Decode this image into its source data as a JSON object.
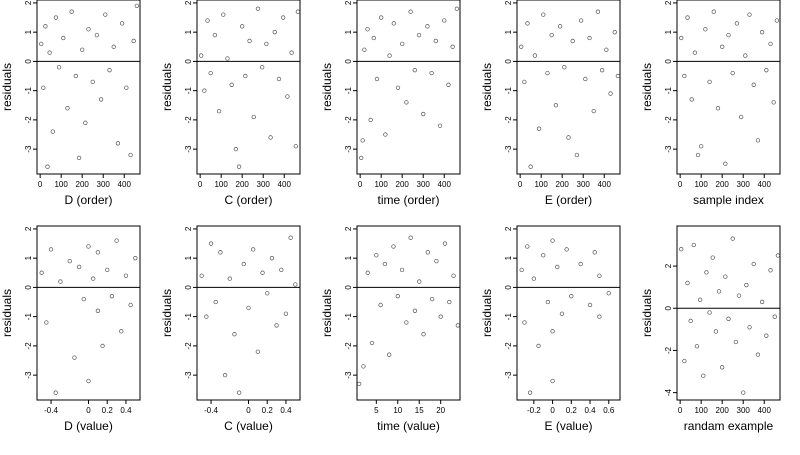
{
  "panels": [
    {
      "kind": "scatter",
      "xlabel": "D (order)",
      "ylabel": "residuals",
      "xlim": [
        -15,
        475
      ],
      "ylim": [
        -3.85,
        2.1
      ],
      "xticks": [
        0,
        100,
        200,
        300,
        400
      ],
      "yticks": [
        -3,
        -2,
        -1,
        0,
        1,
        2
      ],
      "ref_y": 0
    },
    {
      "kind": "scatter",
      "xlabel": "C (order)",
      "ylabel": "residuals",
      "xlim": [
        -15,
        475
      ],
      "ylim": [
        -3.85,
        2.1
      ],
      "xticks": [
        0,
        100,
        200,
        300,
        400
      ],
      "yticks": [
        -3,
        -2,
        -1,
        0,
        1,
        2
      ],
      "ref_y": 0
    },
    {
      "kind": "scatter",
      "xlabel": "time (order)",
      "ylabel": "residuals",
      "xlim": [
        -15,
        475
      ],
      "ylim": [
        -3.85,
        2.1
      ],
      "xticks": [
        0,
        100,
        200,
        300,
        400
      ],
      "yticks": [
        -3,
        -2,
        -1,
        0,
        1,
        2
      ],
      "ref_y": 0
    },
    {
      "kind": "scatter",
      "xlabel": "E (order)",
      "ylabel": "residuals",
      "xlim": [
        -15,
        475
      ],
      "ylim": [
        -3.85,
        2.1
      ],
      "xticks": [
        0,
        100,
        200,
        300,
        400
      ],
      "yticks": [
        -3,
        -2,
        -1,
        0,
        1,
        2
      ],
      "ref_y": 0
    },
    {
      "kind": "scatter",
      "xlabel": "sample index",
      "ylabel": "residuals",
      "xlim": [
        -15,
        475
      ],
      "ylim": [
        -3.85,
        2.1
      ],
      "xticks": [
        0,
        100,
        200,
        300,
        400
      ],
      "yticks": [
        -3,
        -2,
        -1,
        0,
        1,
        2
      ],
      "ref_y": 0
    },
    {
      "kind": "scatter",
      "xlabel": "D (value)",
      "ylabel": "residuals",
      "xlim": [
        -0.55,
        0.55
      ],
      "ylim": [
        -3.85,
        2.1
      ],
      "xticks": [
        -0.4,
        0.0,
        0.2,
        0.4
      ],
      "yticks": [
        -3,
        -2,
        -1,
        0,
        1,
        2
      ],
      "ref_y": 0
    },
    {
      "kind": "scatter",
      "xlabel": "C (value)",
      "ylabel": "residuals",
      "xlim": [
        -0.55,
        0.55
      ],
      "ylim": [
        -3.85,
        2.1
      ],
      "xticks": [
        -0.4,
        0.0,
        0.2,
        0.4
      ],
      "yticks": [
        -3,
        -2,
        -1,
        0,
        1,
        2
      ],
      "ref_y": 0
    },
    {
      "kind": "scatter",
      "xlabel": "time (value)",
      "ylabel": "residuals",
      "xlim": [
        0.5,
        24.5
      ],
      "ylim": [
        -3.85,
        2.1
      ],
      "xticks": [
        5,
        10,
        15,
        20
      ],
      "yticks": [
        -3,
        -2,
        -1,
        0,
        1,
        2
      ],
      "ref_y": 0
    },
    {
      "kind": "scatter",
      "xlabel": "E (value)",
      "ylabel": "residuals",
      "xlim": [
        -0.38,
        0.72
      ],
      "ylim": [
        -3.85,
        2.1
      ],
      "xticks": [
        -0.2,
        0.0,
        0.2,
        0.4,
        0.6
      ],
      "yticks": [
        -3,
        -2,
        -1,
        0,
        1,
        2
      ],
      "ref_y": 0
    },
    {
      "kind": "scatter",
      "xlabel": "randam example",
      "ylabel": "residuals",
      "xlim": [
        -15,
        475
      ],
      "ylim": [
        -4.35,
        3.9
      ],
      "xticks": [
        0,
        100,
        200,
        300,
        400
      ],
      "yticks": [
        -4,
        -2,
        0,
        2
      ],
      "ref_y": 0
    }
  ],
  "chart_data": [
    {
      "type": "scatter",
      "xlabel": "D (order)",
      "ylabel": "residuals",
      "xlim": [
        -15,
        475
      ],
      "ylim": [
        -3.85,
        2.1
      ],
      "grid": false,
      "points": [
        [
          5,
          0.6
        ],
        [
          15,
          -0.9
        ],
        [
          25,
          1.2
        ],
        [
          35,
          -3.6
        ],
        [
          45,
          0.3
        ],
        [
          60,
          -2.4
        ],
        [
          75,
          1.5
        ],
        [
          90,
          -0.2
        ],
        [
          110,
          0.8
        ],
        [
          130,
          -1.6
        ],
        [
          150,
          1.7
        ],
        [
          170,
          -0.5
        ],
        [
          185,
          -3.3
        ],
        [
          200,
          0.4
        ],
        [
          215,
          -2.1
        ],
        [
          230,
          1.1
        ],
        [
          250,
          -0.7
        ],
        [
          270,
          0.9
        ],
        [
          290,
          -1.3
        ],
        [
          310,
          1.6
        ],
        [
          330,
          -0.3
        ],
        [
          350,
          0.5
        ],
        [
          370,
          -2.8
        ],
        [
          390,
          1.3
        ],
        [
          410,
          -0.9
        ],
        [
          430,
          -3.2
        ],
        [
          445,
          0.7
        ],
        [
          460,
          1.9
        ]
      ]
    },
    {
      "type": "scatter",
      "xlabel": "C (order)",
      "ylabel": "residuals",
      "xlim": [
        -15,
        475
      ],
      "ylim": [
        -3.85,
        2.1
      ],
      "grid": false,
      "points": [
        [
          5,
          0.2
        ],
        [
          20,
          -1.0
        ],
        [
          35,
          1.4
        ],
        [
          50,
          -0.4
        ],
        [
          70,
          0.9
        ],
        [
          90,
          -1.7
        ],
        [
          110,
          1.6
        ],
        [
          130,
          0.1
        ],
        [
          150,
          -0.8
        ],
        [
          170,
          -3.0
        ],
        [
          185,
          -3.6
        ],
        [
          200,
          1.2
        ],
        [
          215,
          -0.5
        ],
        [
          235,
          0.7
        ],
        [
          255,
          -1.9
        ],
        [
          275,
          1.8
        ],
        [
          295,
          -0.2
        ],
        [
          315,
          0.6
        ],
        [
          335,
          -2.6
        ],
        [
          355,
          1.0
        ],
        [
          375,
          -0.6
        ],
        [
          395,
          1.5
        ],
        [
          415,
          -1.2
        ],
        [
          435,
          0.3
        ],
        [
          455,
          -2.9
        ],
        [
          465,
          1.7
        ]
      ]
    },
    {
      "type": "scatter",
      "xlabel": "time (order)",
      "ylabel": "residuals",
      "xlim": [
        -15,
        475
      ],
      "ylim": [
        -3.85,
        2.1
      ],
      "grid": false,
      "points": [
        [
          5,
          -3.3
        ],
        [
          12,
          -2.7
        ],
        [
          20,
          0.4
        ],
        [
          35,
          1.1
        ],
        [
          50,
          -2.0
        ],
        [
          65,
          0.8
        ],
        [
          80,
          -0.6
        ],
        [
          100,
          1.5
        ],
        [
          120,
          -2.5
        ],
        [
          140,
          0.2
        ],
        [
          160,
          1.3
        ],
        [
          180,
          -0.9
        ],
        [
          200,
          0.6
        ],
        [
          220,
          -1.4
        ],
        [
          240,
          1.7
        ],
        [
          260,
          -0.3
        ],
        [
          280,
          0.9
        ],
        [
          300,
          -1.8
        ],
        [
          320,
          1.2
        ],
        [
          340,
          -0.4
        ],
        [
          360,
          0.7
        ],
        [
          380,
          -2.2
        ],
        [
          400,
          1.4
        ],
        [
          420,
          -0.8
        ],
        [
          440,
          0.5
        ],
        [
          460,
          1.8
        ]
      ]
    },
    {
      "type": "scatter",
      "xlabel": "E (order)",
      "ylabel": "residuals",
      "xlim": [
        -15,
        475
      ],
      "ylim": [
        -3.85,
        2.1
      ],
      "grid": false,
      "points": [
        [
          5,
          0.5
        ],
        [
          20,
          -0.7
        ],
        [
          35,
          1.3
        ],
        [
          50,
          -3.6
        ],
        [
          70,
          0.2
        ],
        [
          90,
          -2.3
        ],
        [
          110,
          1.6
        ],
        [
          130,
          -0.4
        ],
        [
          150,
          0.9
        ],
        [
          170,
          -1.5
        ],
        [
          190,
          1.2
        ],
        [
          210,
          -0.2
        ],
        [
          230,
          -2.6
        ],
        [
          250,
          0.7
        ],
        [
          270,
          -3.2
        ],
        [
          290,
          1.4
        ],
        [
          310,
          -0.6
        ],
        [
          330,
          0.8
        ],
        [
          350,
          -1.7
        ],
        [
          370,
          1.7
        ],
        [
          390,
          -0.3
        ],
        [
          410,
          0.4
        ],
        [
          430,
          -1.1
        ],
        [
          450,
          1.0
        ],
        [
          465,
          -0.5
        ]
      ]
    },
    {
      "type": "scatter",
      "xlabel": "sample index",
      "ylabel": "residuals",
      "xlim": [
        -15,
        475
      ],
      "ylim": [
        -3.85,
        2.1
      ],
      "grid": false,
      "points": [
        [
          5,
          0.8
        ],
        [
          20,
          -0.5
        ],
        [
          35,
          1.5
        ],
        [
          55,
          -1.3
        ],
        [
          70,
          0.3
        ],
        [
          85,
          -3.2
        ],
        [
          100,
          -2.9
        ],
        [
          120,
          1.1
        ],
        [
          140,
          -0.7
        ],
        [
          160,
          1.7
        ],
        [
          180,
          -1.6
        ],
        [
          200,
          0.5
        ],
        [
          215,
          -3.5
        ],
        [
          230,
          0.9
        ],
        [
          250,
          -0.4
        ],
        [
          270,
          1.3
        ],
        [
          290,
          -1.9
        ],
        [
          310,
          0.2
        ],
        [
          330,
          1.6
        ],
        [
          350,
          -0.8
        ],
        [
          370,
          -2.7
        ],
        [
          390,
          1.0
        ],
        [
          410,
          -0.3
        ],
        [
          430,
          0.6
        ],
        [
          445,
          -1.4
        ],
        [
          460,
          1.4
        ]
      ]
    },
    {
      "type": "scatter",
      "xlabel": "D (value)",
      "ylabel": "residuals",
      "xlim": [
        -0.55,
        0.55
      ],
      "ylim": [
        -3.85,
        2.1
      ],
      "grid": false,
      "points": [
        [
          -0.5,
          0.5
        ],
        [
          -0.45,
          -1.2
        ],
        [
          -0.4,
          1.3
        ],
        [
          -0.35,
          -3.6
        ],
        [
          -0.3,
          0.2
        ],
        [
          -0.2,
          0.9
        ],
        [
          -0.15,
          -2.4
        ],
        [
          -0.1,
          0.7
        ],
        [
          -0.05,
          -0.4
        ],
        [
          0.0,
          1.4
        ],
        [
          0.0,
          -3.2
        ],
        [
          0.05,
          0.3
        ],
        [
          0.1,
          -0.8
        ],
        [
          0.1,
          1.2
        ],
        [
          0.15,
          -2.0
        ],
        [
          0.2,
          0.6
        ],
        [
          0.25,
          -0.3
        ],
        [
          0.3,
          1.6
        ],
        [
          0.35,
          -1.5
        ],
        [
          0.4,
          0.4
        ],
        [
          0.45,
          -0.6
        ],
        [
          0.5,
          1.0
        ]
      ]
    },
    {
      "type": "scatter",
      "xlabel": "C (value)",
      "ylabel": "residuals",
      "xlim": [
        -0.55,
        0.55
      ],
      "ylim": [
        -3.85,
        2.1
      ],
      "grid": false,
      "points": [
        [
          -0.5,
          0.4
        ],
        [
          -0.45,
          -1.0
        ],
        [
          -0.4,
          1.5
        ],
        [
          -0.35,
          -0.5
        ],
        [
          -0.3,
          1.2
        ],
        [
          -0.25,
          -3.0
        ],
        [
          -0.2,
          0.3
        ],
        [
          -0.15,
          -1.6
        ],
        [
          -0.1,
          -3.6
        ],
        [
          -0.05,
          0.8
        ],
        [
          0.0,
          -0.7
        ],
        [
          0.05,
          1.3
        ],
        [
          0.1,
          -2.2
        ],
        [
          0.15,
          0.5
        ],
        [
          0.2,
          -0.2
        ],
        [
          0.25,
          1.0
        ],
        [
          0.3,
          -1.3
        ],
        [
          0.35,
          0.6
        ],
        [
          0.4,
          -0.9
        ],
        [
          0.45,
          1.7
        ],
        [
          0.5,
          0.1
        ]
      ]
    },
    {
      "type": "scatter",
      "xlabel": "time (value)",
      "ylabel": "residuals",
      "xlim": [
        0.5,
        24.5
      ],
      "ylim": [
        -3.85,
        2.1
      ],
      "grid": false,
      "points": [
        [
          1,
          -3.3
        ],
        [
          2,
          -2.7
        ],
        [
          3,
          0.5
        ],
        [
          4,
          -1.9
        ],
        [
          5,
          1.1
        ],
        [
          6,
          -0.6
        ],
        [
          7,
          0.8
        ],
        [
          8,
          -2.3
        ],
        [
          9,
          1.4
        ],
        [
          10,
          -0.3
        ],
        [
          11,
          0.6
        ],
        [
          12,
          -1.2
        ],
        [
          13,
          1.7
        ],
        [
          14,
          -0.8
        ],
        [
          15,
          0.2
        ],
        [
          16,
          -1.6
        ],
        [
          17,
          1.2
        ],
        [
          18,
          -0.4
        ],
        [
          19,
          0.9
        ],
        [
          20,
          -1.0
        ],
        [
          21,
          1.5
        ],
        [
          22,
          -0.5
        ],
        [
          23,
          0.4
        ],
        [
          24,
          -1.3
        ]
      ]
    },
    {
      "type": "scatter",
      "xlabel": "E (value)",
      "ylabel": "residuals",
      "xlim": [
        -0.38,
        0.72
      ],
      "ylim": [
        -3.85,
        2.1
      ],
      "grid": false,
      "points": [
        [
          -0.33,
          0.6
        ],
        [
          -0.3,
          -1.2
        ],
        [
          -0.27,
          1.4
        ],
        [
          -0.24,
          -3.6
        ],
        [
          -0.2,
          0.3
        ],
        [
          -0.15,
          -2.0
        ],
        [
          -0.1,
          1.1
        ],
        [
          -0.05,
          -0.5
        ],
        [
          0.0,
          -3.2
        ],
        [
          0.0,
          1.6
        ],
        [
          0.0,
          -1.5
        ],
        [
          0.05,
          0.7
        ],
        [
          0.1,
          -0.9
        ],
        [
          0.15,
          1.3
        ],
        [
          0.2,
          -0.3
        ],
        [
          0.3,
          0.8
        ],
        [
          0.4,
          -0.6
        ],
        [
          0.45,
          1.2
        ],
        [
          0.5,
          -1.0
        ],
        [
          0.5,
          0.4
        ],
        [
          0.6,
          -0.2
        ]
      ]
    },
    {
      "type": "scatter",
      "xlabel": "randam example",
      "ylabel": "residuals",
      "xlim": [
        -15,
        475
      ],
      "ylim": [
        -4.35,
        3.9
      ],
      "grid": false,
      "points": [
        [
          5,
          2.8
        ],
        [
          20,
          -2.5
        ],
        [
          35,
          1.2
        ],
        [
          50,
          -0.6
        ],
        [
          65,
          3.0
        ],
        [
          80,
          -1.8
        ],
        [
          95,
          0.4
        ],
        [
          110,
          -3.2
        ],
        [
          125,
          1.7
        ],
        [
          140,
          -0.2
        ],
        [
          155,
          2.4
        ],
        [
          170,
          -1.1
        ],
        [
          185,
          0.8
        ],
        [
          200,
          -2.8
        ],
        [
          215,
          1.5
        ],
        [
          230,
          -0.5
        ],
        [
          250,
          3.3
        ],
        [
          265,
          -1.6
        ],
        [
          280,
          0.6
        ],
        [
          300,
          -4.0
        ],
        [
          315,
          1.1
        ],
        [
          330,
          -0.9
        ],
        [
          350,
          2.1
        ],
        [
          370,
          -2.2
        ],
        [
          390,
          0.3
        ],
        [
          410,
          -1.3
        ],
        [
          430,
          1.8
        ],
        [
          450,
          -0.4
        ],
        [
          465,
          2.5
        ]
      ]
    }
  ]
}
